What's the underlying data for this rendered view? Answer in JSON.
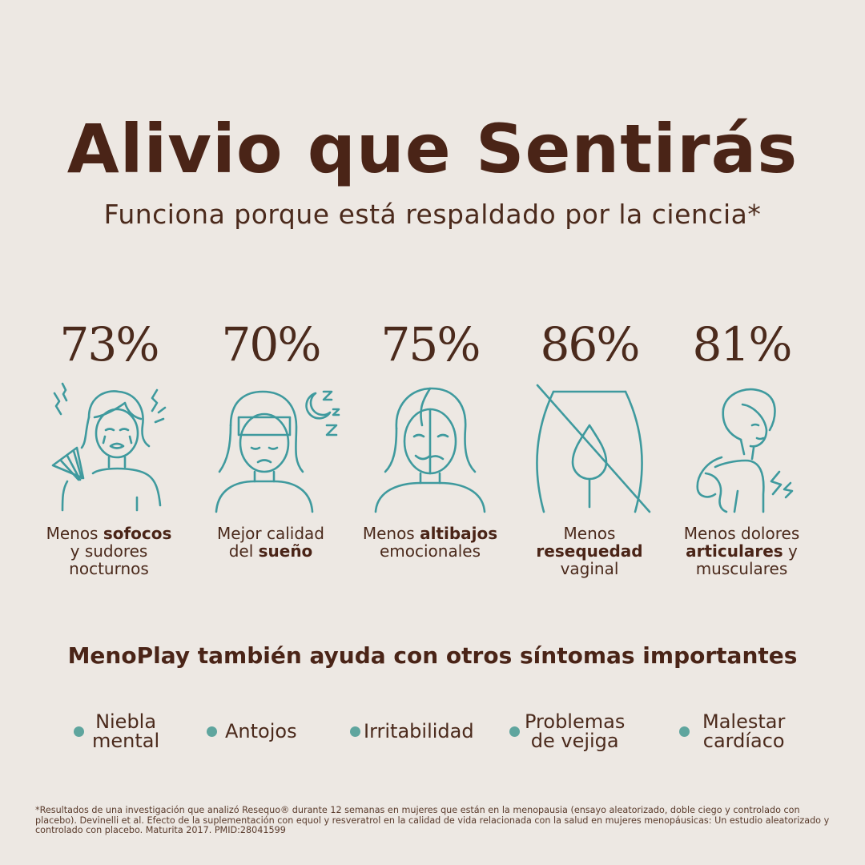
{
  "header": {
    "title": "Alivio que Sentirás",
    "subtitle": "Funciona porque está respaldado por la ciencia*"
  },
  "stats": [
    {
      "percent": "73%",
      "icon": "hot-flash-fan-icon",
      "pre": "Menos ",
      "bold": "sofocos",
      "post": "\ny sudores\nnocturnos"
    },
    {
      "percent": "70%",
      "icon": "sleep-icon",
      "pre": "Mejor calidad\ndel ",
      "bold": "sueño",
      "post": ""
    },
    {
      "percent": "75%",
      "icon": "mood-swings-icon",
      "pre": "Menos ",
      "bold": "altibajos",
      "post": "\nemocionales"
    },
    {
      "percent": "86%",
      "icon": "no-dryness-icon",
      "pre": "Menos\n",
      "bold": "resequedad",
      "post": "\nvaginal"
    },
    {
      "percent": "81%",
      "icon": "joint-pain-icon",
      "pre": "Menos dolores\n",
      "bold": "articulares",
      "post": " y\nmusculares"
    }
  ],
  "section": {
    "title": "MenoPlay también ayuda con otros síntomas importantes"
  },
  "extras": [
    {
      "label": "Niebla\nmental"
    },
    {
      "label": "Antojos"
    },
    {
      "label": "Irritabilidad"
    },
    {
      "label": "Problemas\nde vejiga"
    },
    {
      "label": "Malestar\ncardíaco"
    }
  ],
  "footnote": "*Resultados de una investigación que analizó Resequo® durante 12 semanas en mujeres que están en la menopausia (ensayo aleatorizado, doble ciego y controlado con placebo). Devinelli et al. Efecto de la suplementación con equol y resveratrol en la calidad de vida relacionada con la salud en mujeres menopáusicas: Un estudio aleatorizado y controlado con placebo. Maturita 2017. PMID:28041599",
  "colors": {
    "background": "#ede8e3",
    "brown": "#4a2417",
    "teal": "#3f9a9e",
    "dot": "#5fa59e"
  }
}
